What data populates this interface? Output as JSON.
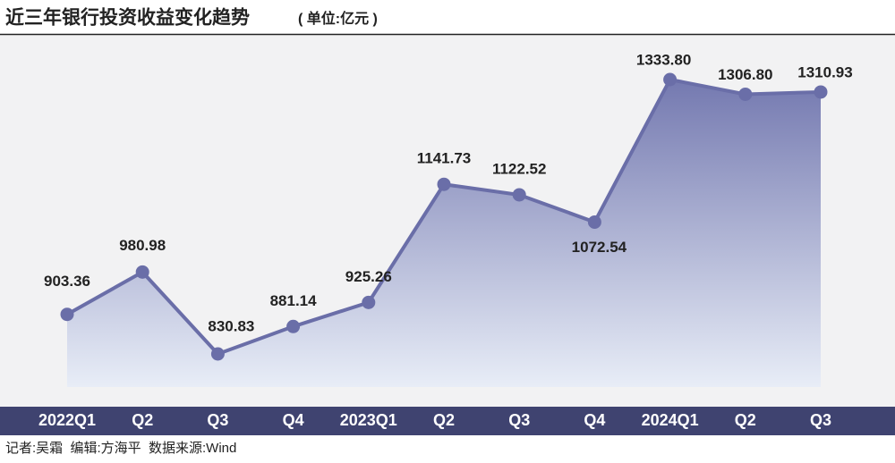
{
  "chart_data": {
    "type": "line",
    "title": "近三年银行投资收益变化趋势",
    "subtitle": "( 单位:亿元 )",
    "categories": [
      "2022Q1",
      "Q2",
      "Q3",
      "Q4",
      "2023Q1",
      "Q2",
      "Q3",
      "Q4",
      "2024Q1",
      "Q2",
      "Q3"
    ],
    "values": [
      903.36,
      980.98,
      830.83,
      881.14,
      925.26,
      1141.73,
      1122.52,
      1072.54,
      1333.8,
      1306.8,
      1310.93
    ],
    "value_labels": [
      "903.36",
      "980.98",
      "830.83",
      "881.14",
      "925.26",
      "1141.73",
      "1122.52",
      "1072.54",
      "1333.80",
      "1306.80",
      "1310.93"
    ],
    "color": "#6a6ea8",
    "credits": "记者:吴霜  编辑:方海平  数据来源:Wind"
  }
}
